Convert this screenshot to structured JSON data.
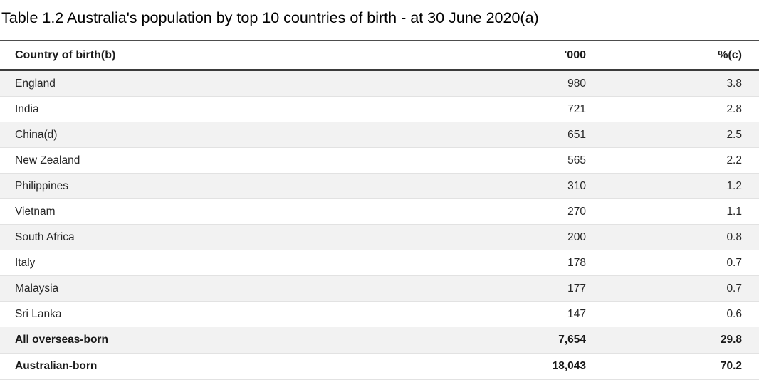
{
  "page": {
    "title": "Table 1.2 Australia's population by top 10 countries of birth - at 30 June 2020(a)"
  },
  "table": {
    "columns": [
      "Country of birth(b)",
      "'000",
      "%(c)"
    ],
    "rows": [
      {
        "country": "England",
        "thousands": "980",
        "percent": "3.8"
      },
      {
        "country": "India",
        "thousands": "721",
        "percent": "2.8"
      },
      {
        "country": "China(d)",
        "thousands": "651",
        "percent": "2.5"
      },
      {
        "country": "New Zealand",
        "thousands": "565",
        "percent": "2.2"
      },
      {
        "country": "Philippines",
        "thousands": "310",
        "percent": "1.2"
      },
      {
        "country": "Vietnam",
        "thousands": "270",
        "percent": "1.1"
      },
      {
        "country": "South Africa",
        "thousands": "200",
        "percent": "0.8"
      },
      {
        "country": "Italy",
        "thousands": "178",
        "percent": "0.7"
      },
      {
        "country": "Malaysia",
        "thousands": "177",
        "percent": "0.7"
      },
      {
        "country": "Sri Lanka",
        "thousands": "147",
        "percent": "0.6"
      },
      {
        "country": "All overseas-born",
        "thousands": "7,654",
        "percent": "29.8"
      },
      {
        "country": "Australian-born",
        "thousands": "18,043",
        "percent": "70.2"
      }
    ]
  },
  "colors": {
    "stripe_bg": "#f2f2f2",
    "rule_dark": "#3b3b3b",
    "rule_top": "#4d4d4d",
    "rule_light": "#e2e2e2",
    "text": "#262626"
  },
  "chart_data": {
    "type": "table",
    "title": "Table 1.2 Australia's population by top 10 countries of birth - at 30 June 2020(a)",
    "columns": [
      "Country of birth(b)",
      "'000",
      "%(c)"
    ],
    "categories": [
      "England",
      "India",
      "China(d)",
      "New Zealand",
      "Philippines",
      "Vietnam",
      "South Africa",
      "Italy",
      "Malaysia",
      "Sri Lanka",
      "All overseas-born",
      "Australian-born"
    ],
    "series": [
      {
        "name": "'000",
        "values": [
          980,
          721,
          651,
          565,
          310,
          270,
          200,
          178,
          177,
          147,
          7654,
          18043
        ]
      },
      {
        "name": "%(c)",
        "values": [
          3.8,
          2.8,
          2.5,
          2.2,
          1.2,
          1.1,
          0.8,
          0.7,
          0.7,
          0.6,
          29.8,
          70.2
        ]
      }
    ]
  }
}
